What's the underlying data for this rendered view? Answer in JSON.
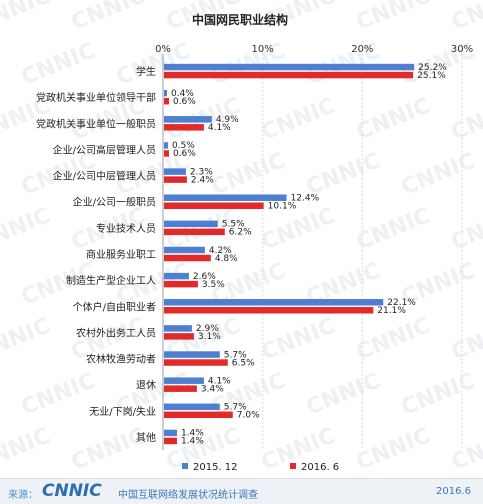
{
  "chart_data": {
    "type": "bar",
    "orientation": "horizontal",
    "title": "中国网民职业结构",
    "categories": [
      "学生",
      "党政机关事业单位领导干部",
      "党政机关事业单位一般职员",
      "企业/公司高层管理人员",
      "企业/公司中层管理人员",
      "企业/公司一般职员",
      "专业技术人员",
      "商业服务业职工",
      "制造生产型企业工人",
      "个体户/自由职业者",
      "农村外出务工人员",
      "农林牧渔劳动者",
      "退休",
      "无业/下岗/失业",
      "其他"
    ],
    "series": [
      {
        "name": "2015. 12",
        "color": "#4f7fd1",
        "values": [
          25.2,
          0.4,
          4.9,
          0.5,
          2.3,
          12.4,
          5.5,
          4.2,
          2.6,
          22.1,
          2.9,
          5.7,
          4.1,
          5.7,
          1.4
        ],
        "labels": [
          "25.2%",
          "0.4%",
          "4.9%",
          "0.5%",
          "2.3%",
          "12.4%",
          "5.5%",
          "4.2%",
          "2.6%",
          "22.1%",
          "2.9%",
          "5.7%",
          "4.1%",
          "5.7%",
          "1.4%"
        ]
      },
      {
        "name": "2016. 6",
        "color": "#e32a2a",
        "values": [
          25.1,
          0.6,
          4.1,
          0.6,
          2.4,
          10.1,
          6.2,
          4.8,
          3.5,
          21.1,
          3.1,
          6.5,
          3.4,
          7.0,
          1.4
        ],
        "labels": [
          "25.1%",
          "0.6%",
          "4.1%",
          "0.6%",
          "2.4%",
          "10.1%",
          "6.2%",
          "4.8%",
          "3.5%",
          "21.1%",
          "3.1%",
          "6.5%",
          "3.4%",
          "7.0%",
          "1.4%"
        ]
      }
    ],
    "xlim": [
      0,
      30
    ],
    "xticks": [
      0,
      10,
      20,
      30
    ],
    "xtick_labels": [
      "0%",
      "10%",
      "20%",
      "30%"
    ],
    "grid": true,
    "legend_position": "bottom",
    "watermark": "CNNIC"
  },
  "footer": {
    "source_label": "来源：",
    "brand": "CNNIC",
    "organization": "中国互联网络发展状况统计调查",
    "date": "2016.6"
  }
}
